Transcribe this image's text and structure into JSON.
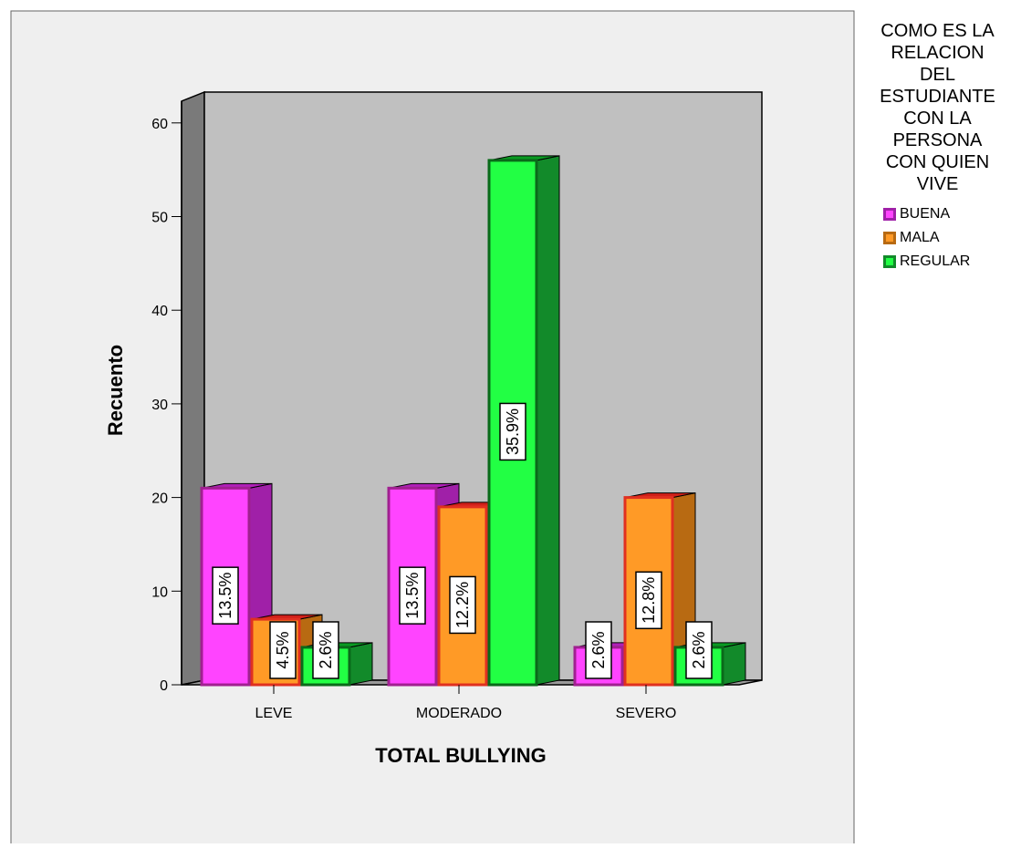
{
  "chart_data": {
    "type": "bar",
    "categories": [
      "LEVE",
      "MODERADO",
      "SEVERO"
    ],
    "series": [
      {
        "name": "BUENA",
        "values": [
          21,
          21,
          4
        ],
        "labels": [
          "13.5%",
          "13.5%",
          "2.6%"
        ]
      },
      {
        "name": "MALA",
        "values": [
          7,
          19,
          20
        ],
        "labels": [
          "4.5%",
          "12.2%",
          "12.8%"
        ]
      },
      {
        "name": "REGULAR",
        "values": [
          4,
          56,
          4
        ],
        "labels": [
          "2.6%",
          "35.9%",
          "2.6%"
        ]
      }
    ],
    "xlabel": "TOTAL BULLYING",
    "ylabel": "Recuento",
    "ylim": [
      0,
      63
    ],
    "yticks": [
      0,
      10,
      20,
      30,
      40,
      50,
      60
    ],
    "legend_title": "COMO ES LA RELACION DEL ESTUDIANTE CON LA PERSONA CON QUIEN VIVE",
    "legend_title_lines": [
      "COMO ES LA",
      "RELACION",
      "DEL",
      "ESTUDIANTE",
      "CON LA",
      "PERSONA",
      "CON QUIEN",
      "VIVE"
    ],
    "legend_position": "right",
    "colors": {
      "BUENA": {
        "front": "#ff44ff",
        "side": "#a020a8",
        "top": "#b020b8",
        "stroke": "#a02090"
      },
      "MALA": {
        "front": "#ff9a26",
        "side": "#b86a12",
        "top": "#d0201a",
        "stroke": "#e03020"
      },
      "REGULAR": {
        "front": "#22ff44",
        "side": "#128a2a",
        "top": "#0a9a22",
        "stroke": "#0a6a1a"
      }
    },
    "background": "#c0c0c0"
  }
}
